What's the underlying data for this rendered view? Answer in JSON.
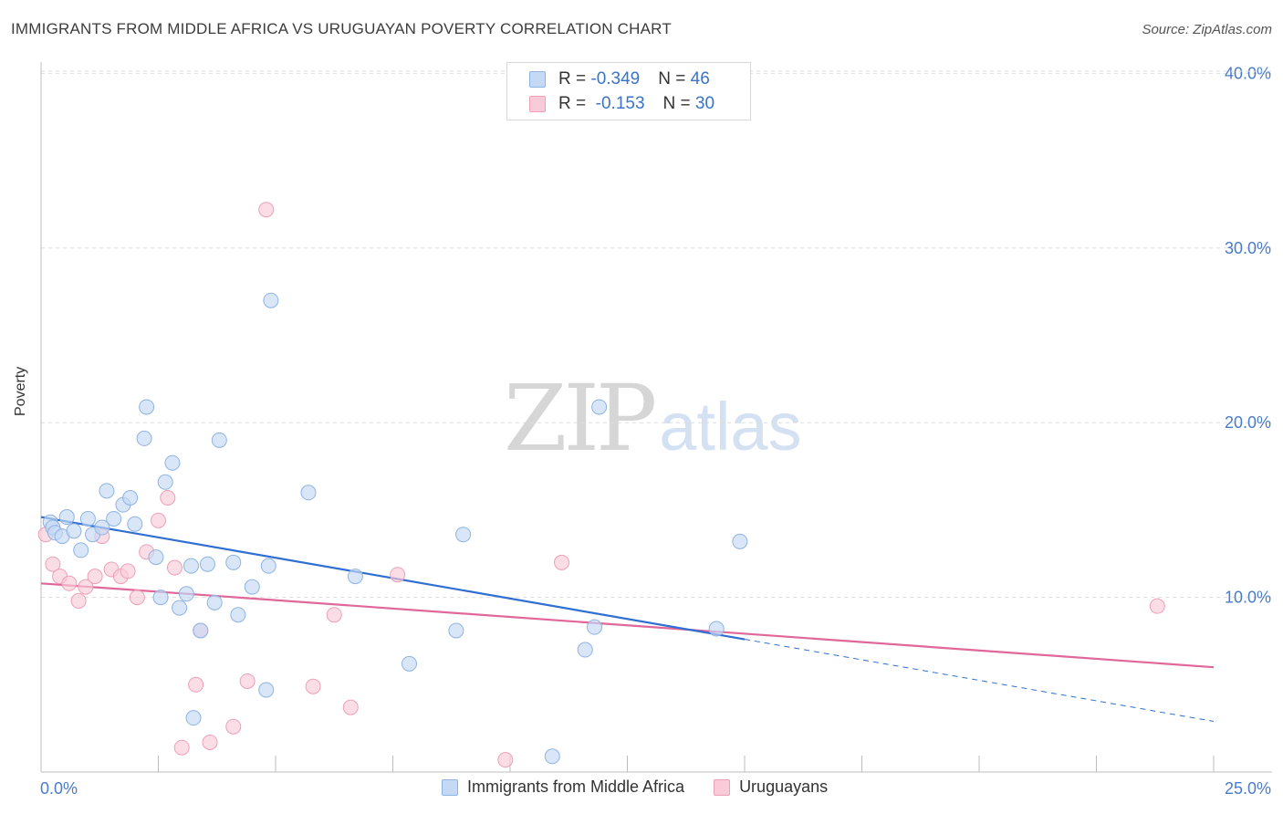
{
  "title": "IMMIGRANTS FROM MIDDLE AFRICA VS URUGUAYAN POVERTY CORRELATION CHART",
  "source": "Source: ZipAtlas.com",
  "watermark": {
    "zip": "ZIP",
    "atlas": "atlas"
  },
  "legend": {
    "rows": [
      {
        "r_label": "R = ",
        "r_value": "-0.349",
        "n_label": "N = ",
        "n_value": "46",
        "color": "#a9c8f0"
      },
      {
        "r_label": "R = ",
        "r_value": " -0.153",
        "n_label": "N = ",
        "n_value": "30",
        "color": "#f6b8cb"
      }
    ]
  },
  "bottom_legend": [
    "Immigrants from Middle Africa",
    "Uruguayans"
  ],
  "colors": {
    "blue_fill": "#c4d9f5",
    "blue_stroke": "#8eb3e3",
    "blue_line": "#2f6fd1",
    "pink_fill": "#f9cbd9",
    "pink_stroke": "#eea0b8",
    "pink_line": "#e0679a",
    "tick_text": "#4a7cc9",
    "grid": "#dedede"
  },
  "chart_data": {
    "type": "scatter",
    "title": "IMMIGRANTS FROM MIDDLE AFRICA VS URUGUAYAN POVERTY CORRELATION CHART",
    "xlabel": "",
    "ylabel": "Poverty",
    "xlim": [
      0,
      25
    ],
    "ylim": [
      0,
      41
    ],
    "x_tick_labels": [
      {
        "value": 0,
        "label": "0.0%"
      },
      {
        "value": 25,
        "label": "25.0%"
      }
    ],
    "y_tick_labels": [
      {
        "value": 10,
        "label": "10.0%"
      },
      {
        "value": 20,
        "label": "20.0%"
      },
      {
        "value": 30,
        "label": "30.0%"
      },
      {
        "value": 40,
        "label": "40.0%"
      }
    ],
    "series": [
      {
        "name": "Immigrants from Middle Africa",
        "r": -0.349,
        "n": 46,
        "points": [
          [
            0.2,
            14.3
          ],
          [
            0.25,
            14.0
          ],
          [
            0.3,
            13.7
          ],
          [
            0.45,
            13.5
          ],
          [
            0.55,
            14.6
          ],
          [
            0.7,
            13.8
          ],
          [
            0.85,
            12.7
          ],
          [
            1.0,
            14.5
          ],
          [
            1.1,
            13.6
          ],
          [
            1.3,
            14.0
          ],
          [
            1.4,
            16.1
          ],
          [
            1.55,
            14.5
          ],
          [
            1.75,
            15.3
          ],
          [
            1.9,
            15.7
          ],
          [
            2.0,
            14.2
          ],
          [
            2.2,
            19.1
          ],
          [
            2.25,
            20.9
          ],
          [
            2.45,
            12.3
          ],
          [
            2.55,
            10.0
          ],
          [
            2.65,
            16.6
          ],
          [
            2.8,
            17.7
          ],
          [
            2.95,
            9.4
          ],
          [
            3.1,
            10.2
          ],
          [
            3.2,
            11.8
          ],
          [
            3.25,
            3.1
          ],
          [
            3.4,
            8.1
          ],
          [
            3.55,
            11.9
          ],
          [
            3.7,
            9.7
          ],
          [
            3.8,
            19.0
          ],
          [
            4.1,
            12.0
          ],
          [
            4.2,
            9.0
          ],
          [
            4.5,
            10.6
          ],
          [
            4.8,
            4.7
          ],
          [
            4.85,
            11.8
          ],
          [
            4.9,
            27.0
          ],
          [
            5.7,
            16.0
          ],
          [
            6.7,
            11.2
          ],
          [
            7.85,
            6.2
          ],
          [
            8.85,
            8.1
          ],
          [
            9.0,
            13.6
          ],
          [
            10.9,
            0.9
          ],
          [
            11.6,
            7.0
          ],
          [
            11.8,
            8.3
          ],
          [
            11.9,
            20.9
          ],
          [
            14.4,
            8.2
          ],
          [
            14.9,
            13.2
          ]
        ],
        "trend": {
          "x0": 0,
          "y0": 14.6,
          "x1": 15.0,
          "y1": 7.6,
          "dash_x1": 25,
          "dash_y1": 2.9
        }
      },
      {
        "name": "Uruguayans",
        "r": -0.153,
        "n": 30,
        "points": [
          [
            0.1,
            13.6
          ],
          [
            0.25,
            11.9
          ],
          [
            0.4,
            11.2
          ],
          [
            0.6,
            10.8
          ],
          [
            0.8,
            9.8
          ],
          [
            0.95,
            10.6
          ],
          [
            1.15,
            11.2
          ],
          [
            1.3,
            13.5
          ],
          [
            1.5,
            11.6
          ],
          [
            1.7,
            11.2
          ],
          [
            1.85,
            11.5
          ],
          [
            2.05,
            10.0
          ],
          [
            2.25,
            12.6
          ],
          [
            2.5,
            14.4
          ],
          [
            2.7,
            15.7
          ],
          [
            2.85,
            11.7
          ],
          [
            3.0,
            1.4
          ],
          [
            3.3,
            5.0
          ],
          [
            3.4,
            8.1
          ],
          [
            3.6,
            1.7
          ],
          [
            4.1,
            2.6
          ],
          [
            4.4,
            5.2
          ],
          [
            4.8,
            32.2
          ],
          [
            5.8,
            4.9
          ],
          [
            6.25,
            9.0
          ],
          [
            6.6,
            3.7
          ],
          [
            7.6,
            11.3
          ],
          [
            9.9,
            0.7
          ],
          [
            11.1,
            12.0
          ],
          [
            23.8,
            9.5
          ]
        ],
        "trend": {
          "x0": 0,
          "y0": 10.8,
          "x1": 25,
          "y1": 6.0
        }
      }
    ]
  }
}
